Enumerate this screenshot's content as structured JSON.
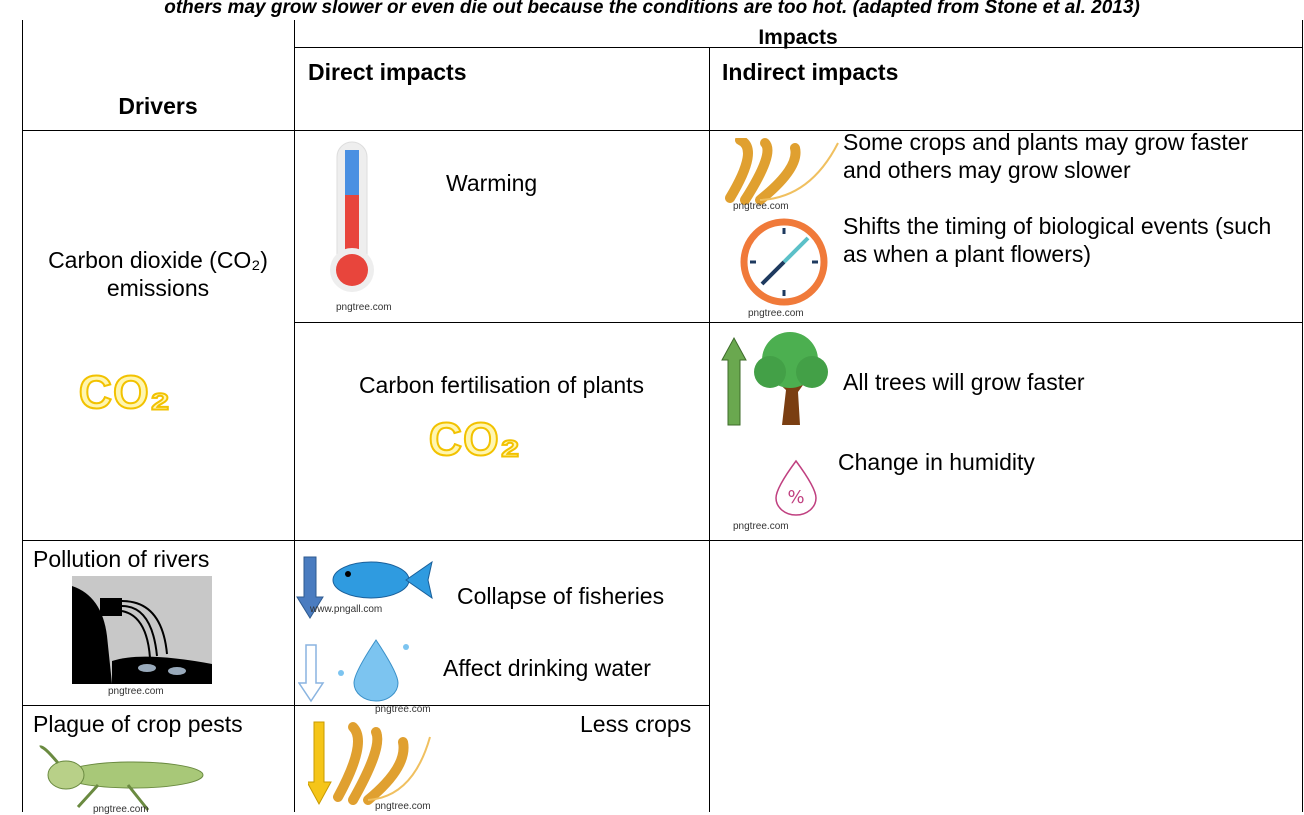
{
  "caption": "others may grow slower or even die out because the conditions are too hot. (adapted from Stone et al. 2013)",
  "header": {
    "impacts": "Impacts",
    "drivers": "Drivers",
    "direct": "Direct impacts",
    "indirect": "Indirect impacts"
  },
  "rows": [
    {
      "driver": "Carbon dioxide (CO₂) emissions",
      "driver_icon": "CO₂",
      "direct": [
        {
          "text": "Warming",
          "credit": "pngtree.com"
        },
        {
          "text": "Carbon fertilisation of plants",
          "icon": "CO₂"
        }
      ],
      "indirect": [
        {
          "text": "Some crops and plants may grow faster and others may grow slower",
          "credit": "pngtree.com"
        },
        {
          "text": "Shifts the timing of biological events (such as when a plant flowers)",
          "credit": "pngtree.com"
        },
        {
          "text": "All trees will grow faster"
        },
        {
          "text": "Change in humidity",
          "credit": "pngtree.com"
        }
      ]
    },
    {
      "driver": "Pollution of rivers",
      "credit": "pngtree.com",
      "direct": [
        {
          "text": "Collapse of fisheries",
          "credit": "www.pngall.com"
        },
        {
          "text": "Affect drinking water",
          "credit": "pngtree.com"
        }
      ]
    },
    {
      "driver": "Plague of crop pests",
      "credit": "pngtree.com",
      "direct": [
        {
          "text": "Less crops",
          "credit": "pngtree.com"
        }
      ]
    }
  ]
}
